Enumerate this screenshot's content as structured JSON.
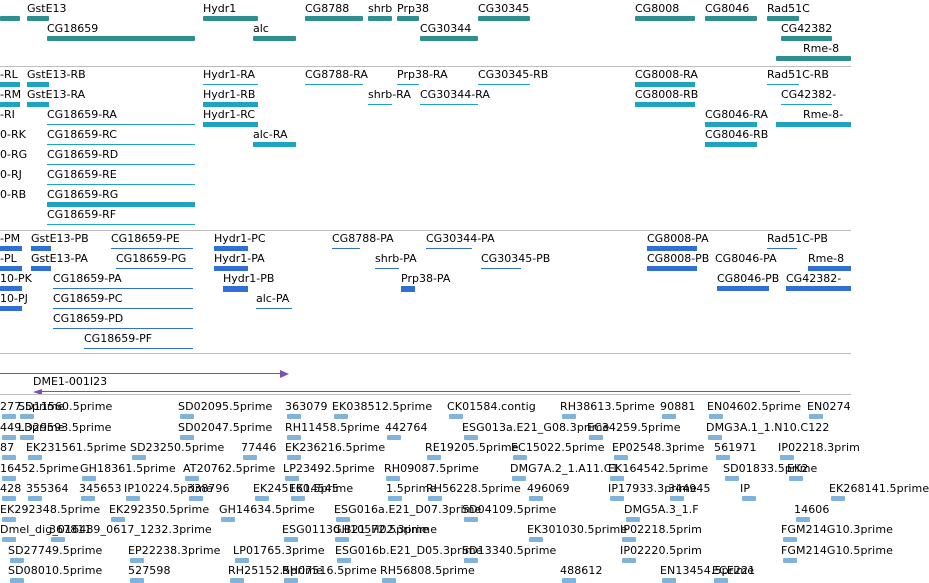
{
  "colors": {
    "gene": "#2f8f8f",
    "transcript_a": "#1ea3c0",
    "transcript_b": "#2f6fd6",
    "clone": "#7b4fb8",
    "est": "#7fb3dc",
    "divider": "#bdbdbd"
  },
  "tracks": {
    "genes": [
      {
        "label": "GstE13"
      },
      {
        "label": "CG18659"
      },
      {
        "label": "Hydr1"
      },
      {
        "label": "alc"
      },
      {
        "label": "CG8788"
      },
      {
        "label": "shrb"
      },
      {
        "label": "Prp38"
      },
      {
        "label": "CG30344"
      },
      {
        "label": "CG30345"
      },
      {
        "label": "CG8008"
      },
      {
        "label": "CG8046"
      },
      {
        "label": "Rad51C"
      },
      {
        "label": "CG42382"
      },
      {
        "label": "Rme-8"
      }
    ],
    "transcripts_a": [
      {
        "label": "-RL"
      },
      {
        "label": "GstE13-RB"
      },
      {
        "label": "-RM"
      },
      {
        "label": "GstE13-RA"
      },
      {
        "label": "-RI"
      },
      {
        "label": "CG18659-RA"
      },
      {
        "label": "0-RK"
      },
      {
        "label": "CG18659-RC"
      },
      {
        "label": "0-RG"
      },
      {
        "label": "CG18659-RD"
      },
      {
        "label": "0-RJ"
      },
      {
        "label": "CG18659-RE"
      },
      {
        "label": "0-RB"
      },
      {
        "label": "CG18659-RG"
      },
      {
        "label": "CG18659-RF"
      },
      {
        "label": "Hydr1-RA"
      },
      {
        "label": "Hydr1-RB"
      },
      {
        "label": "Hydr1-RC"
      },
      {
        "label": "alc-RA"
      },
      {
        "label": "CG8788-RA"
      },
      {
        "label": "Prp38-RA"
      },
      {
        "label": "shrb-RA"
      },
      {
        "label": "CG30345-RB"
      },
      {
        "label": "CG30344-RA"
      },
      {
        "label": "CG8008-RA"
      },
      {
        "label": "CG8008-RB"
      },
      {
        "label": "CG8046-RA"
      },
      {
        "label": "CG8046-RB"
      },
      {
        "label": "Rad51C-RB"
      },
      {
        "label": "CG42382-"
      },
      {
        "label": "Rme-8-"
      }
    ],
    "transcripts_b": [
      {
        "label": "-PM"
      },
      {
        "label": "GstE13-PB"
      },
      {
        "label": "CG18659-PE"
      },
      {
        "label": "-PL"
      },
      {
        "label": "GstE13-PA"
      },
      {
        "label": "CG18659-PG"
      },
      {
        "label": "10-PK"
      },
      {
        "label": "CG18659-PA"
      },
      {
        "label": "10-PJ"
      },
      {
        "label": "CG18659-PC"
      },
      {
        "label": "CG18659-PD"
      },
      {
        "label": "CG18659-PF"
      },
      {
        "label": "Hydr1-PC"
      },
      {
        "label": "Hydr1-PA"
      },
      {
        "label": "Hydr1-PB"
      },
      {
        "label": "alc-PA"
      },
      {
        "label": "CG8788-PA"
      },
      {
        "label": "CG30344-PA"
      },
      {
        "label": "shrb-PA"
      },
      {
        "label": "CG30345-PB"
      },
      {
        "label": "Prp38-PA"
      },
      {
        "label": "CG8008-PA"
      },
      {
        "label": "CG8008-PB"
      },
      {
        "label": "CG8046-PA"
      },
      {
        "label": "CG8046-PB"
      },
      {
        "label": "CG42382-"
      },
      {
        "label": "Rad51C-PB"
      },
      {
        "label": "Rme-8"
      }
    ],
    "clone": {
      "label": "DME1-001I23"
    },
    "ests": [
      "277.5prime",
      "SD11560.5prime",
      "SD02095.5prime",
      "363079",
      "EK038512.5prime",
      "CK01584.contig",
      "RH38613.5prime",
      "90881",
      "EN04602.5prime",
      "EN0274",
      "449.3prime",
      "LD29593.5prime",
      "SD02047.5prime",
      "RH11458.5prime",
      "442764",
      "ESG013a.E21_G08.3prime",
      "EC34259.5prime",
      "DMG3A.1_1.N10.C122",
      "87",
      "EK231561.5prime",
      "SD23250.5prime",
      "77446",
      "EK236216.5prime",
      "RE19205.5prime",
      "EC15022.5prime",
      "EP02548.3prime",
      "561971",
      "IP02218.3prim",
      "16452.5prime",
      "GH18361.5prime",
      "AT20762.5prime",
      "LP23492.5prime",
      "RH09087.5prime",
      "DMG7A.2_1.A11.C1",
      "EK164542.5prime",
      "SD01833.5prime",
      "EK2",
      "428",
      "355364",
      "345653",
      "IP10224.5prime",
      "338796",
      "EK245160.5prime",
      "EK14545",
      "1.5prime",
      "RH56228.5prime",
      "496069",
      "IP17933.3prime",
      "344945",
      "IP",
      "EK268141.5prime",
      "EK292348.5prime",
      "EK292350.5prime",
      "GH14634.5prime",
      "ESG016a.E21_D07.3prime",
      "SD04109.5prime",
      "DMG5A.3_1.F",
      "14606",
      "Dmel_dig_016489_0617_1232.3prime",
      "367811",
      "ESG0113d.B21_H02.3prime",
      "GH10572.5prime",
      "EK301030.5prime",
      "IP02218.5prim",
      "FGM214G10.3prime",
      "SD27749.5prime",
      "EP22238.3prime",
      "LP01765.3prime",
      "ESG016b.E21_D05.3prime",
      "SD13340.5prime",
      "IP02220.5prim",
      "FGM214G10.5prime",
      "SD08010.5prime",
      "527598",
      "RH25152.5prime",
      "RH07516.5prime",
      "RH56808.5prime",
      "488612",
      "EN13454.5prime",
      "ECE221"
    ]
  }
}
